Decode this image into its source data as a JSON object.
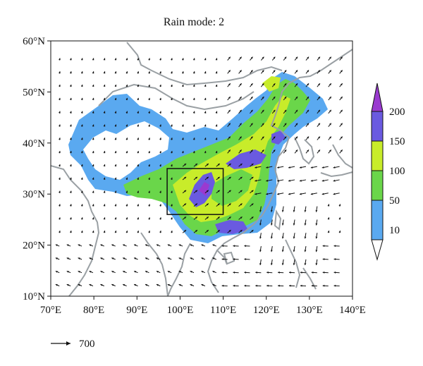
{
  "title": "Rain mode: 2",
  "lat_labels": [
    "60°N",
    "50°N",
    "40°N",
    "30°N",
    "20°N",
    "10°N"
  ],
  "lon_labels": [
    "70°E",
    "80°E",
    "90°E",
    "100°E",
    "110°E",
    "120°E",
    "130°E",
    "140°E"
  ],
  "colorbar": {
    "levels": [
      "10",
      "50",
      "100",
      "150",
      "200"
    ],
    "colors": [
      "#ffffff",
      "#5aa9f0",
      "#6ad64a",
      "#c8ec2a",
      "#6a5ae0",
      "#9a3ad0"
    ]
  },
  "reference_vector": {
    "label": "700"
  },
  "colors": {
    "coast": "#9aa0a4",
    "arrow": "#111111",
    "box": "#111111"
  },
  "extent": {
    "lon": [
      70,
      140
    ],
    "lat": [
      10,
      60
    ]
  },
  "region_box": {
    "lon": [
      97,
      110
    ],
    "lat": [
      26,
      35
    ]
  }
}
